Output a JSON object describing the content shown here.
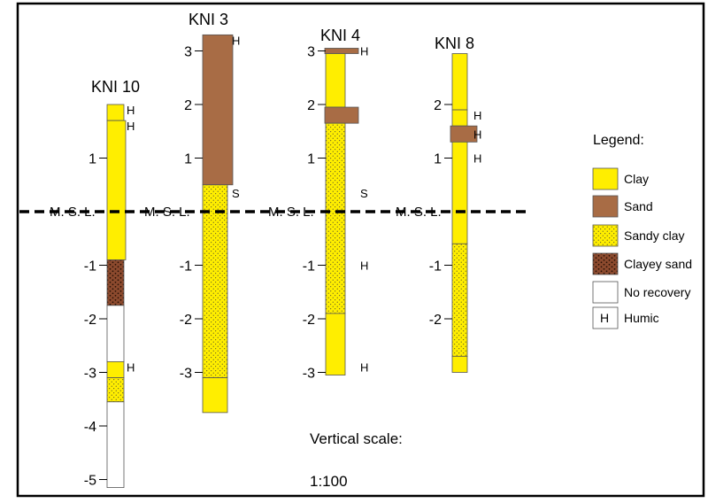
{
  "colors": {
    "clay": "#ffee00",
    "sand": "#a86c45",
    "sandy_clay": "#ffee00",
    "clayey_sand": "#8c4a2e",
    "no_recovery": "#ffffff",
    "frame": "#000000",
    "msl_line": "#000000"
  },
  "msl_label": "M. S. L.",
  "legend": {
    "title": "Legend:",
    "items": [
      {
        "key": "clay",
        "label": "Clay"
      },
      {
        "key": "sand",
        "label": "Sand"
      },
      {
        "key": "sandy_clay",
        "label": "Sandy clay"
      },
      {
        "key": "clayey_sand",
        "label": "Clayey sand"
      },
      {
        "key": "no_recovery",
        "label": "No recovery"
      },
      {
        "key": "humic",
        "label": "Humic",
        "symbol": "H"
      }
    ]
  },
  "scale": {
    "label": "Vertical scale:",
    "value": "1:100"
  },
  "boreholes": [
    {
      "name": "KNI 10",
      "ticks": [
        "1",
        "-1",
        "-2",
        "-3",
        "-4",
        "-5"
      ],
      "tick_values": [
        1,
        -1,
        -2,
        -3,
        -4,
        -5
      ],
      "layers": [
        {
          "top": 2.0,
          "bottom": 1.7,
          "material": "clay"
        },
        {
          "top": 1.7,
          "bottom": -0.9,
          "material": "clay"
        },
        {
          "top": -0.9,
          "bottom": -1.75,
          "material": "clayey_sand"
        },
        {
          "top": -1.75,
          "bottom": -2.8,
          "material": "no_recovery"
        },
        {
          "top": -2.8,
          "bottom": -3.1,
          "material": "clay"
        },
        {
          "top": -3.1,
          "bottom": -3.55,
          "material": "sandy_clay"
        },
        {
          "top": -3.55,
          "bottom": -5.15,
          "material": "no_recovery"
        }
      ],
      "annotations": [
        {
          "text": "H",
          "depth": 1.9
        },
        {
          "text": "H",
          "depth": 1.6
        },
        {
          "text": "H",
          "depth": -2.9
        }
      ]
    },
    {
      "name": "KNI 3",
      "ticks": [
        "3",
        "2",
        "1",
        "-1",
        "-2",
        "-3"
      ],
      "tick_values": [
        3,
        2,
        1,
        -1,
        -2,
        -3
      ],
      "layers": [
        {
          "top": 3.3,
          "bottom": 0.5,
          "material": "sand"
        },
        {
          "top": 0.5,
          "bottom": -3.1,
          "material": "sandy_clay"
        },
        {
          "top": -3.1,
          "bottom": -3.75,
          "material": "clay"
        }
      ],
      "annotations": [
        {
          "text": "H",
          "depth": 3.2
        },
        {
          "text": "S",
          "depth": 0.35
        }
      ]
    },
    {
      "name": "KNI 4",
      "ticks": [
        "3",
        "2",
        "1",
        "-1",
        "-2",
        "-3"
      ],
      "tick_values": [
        3,
        2,
        1,
        -1,
        -2,
        -3
      ],
      "layers": [
        {
          "top": 3.05,
          "bottom": 2.95,
          "material": "sand"
        },
        {
          "top": 2.95,
          "bottom": 1.95,
          "material": "clay"
        },
        {
          "top": 1.95,
          "bottom": 1.65,
          "material": "sand"
        },
        {
          "top": 1.65,
          "bottom": -1.9,
          "material": "sandy_clay"
        },
        {
          "top": -1.9,
          "bottom": -3.05,
          "material": "clay"
        }
      ],
      "annotations": [
        {
          "text": "H",
          "depth": 3.0
        },
        {
          "text": "S",
          "depth": 0.35
        },
        {
          "text": "H",
          "depth": -1.0
        },
        {
          "text": "H",
          "depth": -2.9
        }
      ]
    },
    {
      "name": "KNI 8",
      "ticks": [
        "2",
        "1",
        "-1",
        "-2"
      ],
      "tick_values": [
        2,
        1,
        -1,
        -2
      ],
      "layers": [
        {
          "top": 2.95,
          "bottom": 1.9,
          "material": "clay"
        },
        {
          "top": 1.9,
          "bottom": 1.6,
          "material": "clay"
        },
        {
          "top": 1.6,
          "bottom": 1.3,
          "material": "sand"
        },
        {
          "top": 1.3,
          "bottom": -0.6,
          "material": "clay"
        },
        {
          "top": -0.6,
          "bottom": -2.7,
          "material": "sandy_clay"
        },
        {
          "top": -2.7,
          "bottom": -3.0,
          "material": "clay"
        }
      ],
      "annotations": [
        {
          "text": "H",
          "depth": 1.8
        },
        {
          "text": "H",
          "depth": 1.45
        },
        {
          "text": "H",
          "depth": 1.0
        }
      ]
    }
  ]
}
